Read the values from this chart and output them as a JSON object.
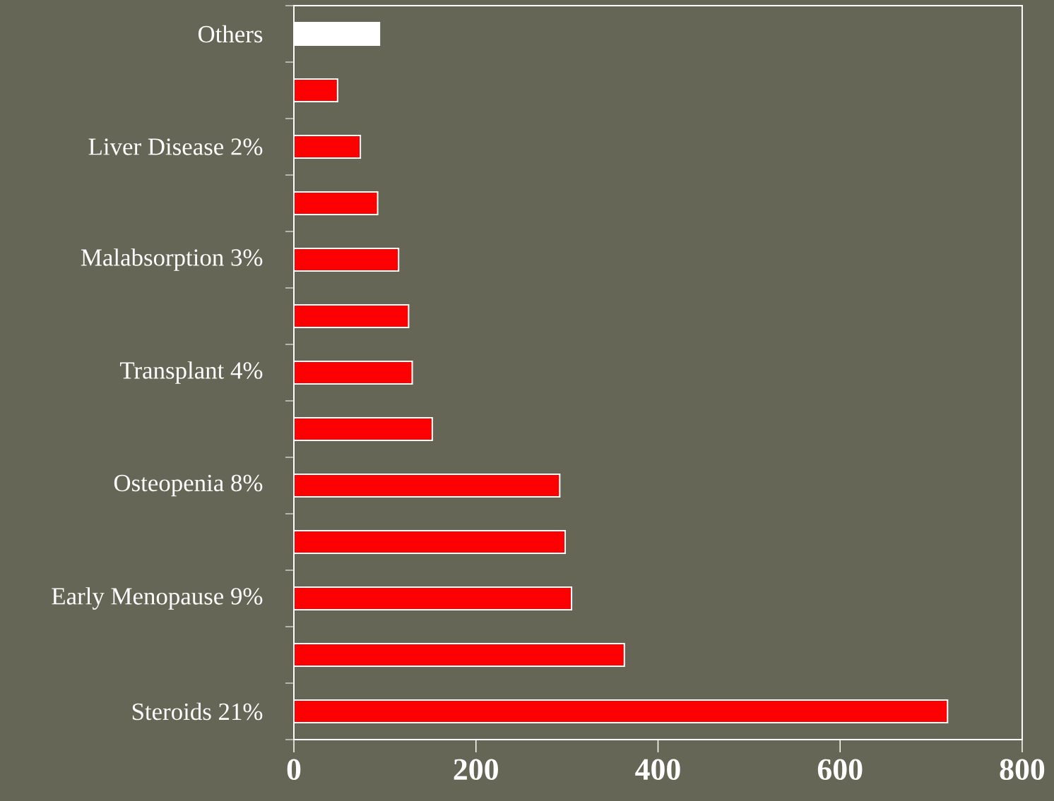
{
  "chart_data": {
    "type": "bar",
    "orientation": "horizontal",
    "categories": [
      "Others",
      null,
      "Liver Disease 2%",
      null,
      "Malabsorption 3%",
      null,
      "Transplant 4%",
      null,
      "Osteopenia 8%",
      null,
      "Early Menopause 9%",
      null,
      "Steroids 21%"
    ],
    "values": [
      94,
      48,
      73,
      92,
      115,
      126,
      130,
      152,
      292,
      298,
      305,
      363,
      718
    ],
    "colors": [
      "#ffffff",
      "#ff0000",
      "#ff0000",
      "#ff0000",
      "#ff0000",
      "#ff0000",
      "#ff0000",
      "#ff0000",
      "#ff0000",
      "#ff0000",
      "#ff0000",
      "#ff0000",
      "#ff0000"
    ],
    "xlim": [
      0,
      800
    ],
    "xticks": [
      0,
      200,
      400,
      600,
      800
    ]
  }
}
